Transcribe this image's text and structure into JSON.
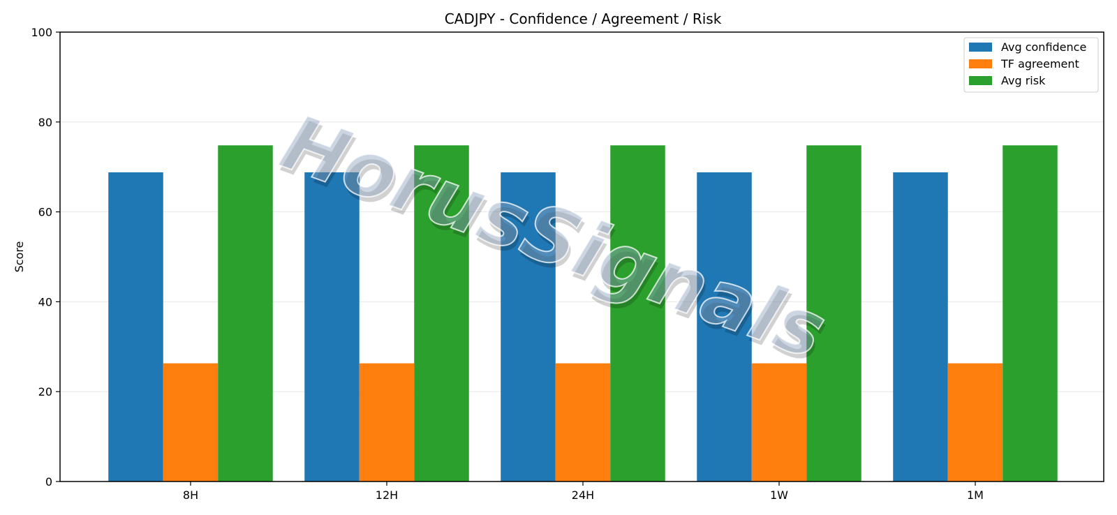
{
  "chart_data": {
    "type": "bar",
    "title": "CADJPY - Confidence / Agreement / Risk",
    "xlabel": "",
    "ylabel": "Score",
    "ylim": [
      0,
      100
    ],
    "yticks": [
      0,
      20,
      40,
      60,
      80,
      100
    ],
    "grid": "y",
    "legend_position": "top-right",
    "categories": [
      "8H",
      "12H",
      "24H",
      "1W",
      "1M"
    ],
    "series": [
      {
        "name": "Avg confidence",
        "color": "#1f77b4",
        "values": [
          68.8,
          68.8,
          68.8,
          68.8,
          68.8
        ]
      },
      {
        "name": "TF agreement",
        "color": "#ff7f0e",
        "values": [
          26.3,
          26.3,
          26.3,
          26.3,
          26.3
        ]
      },
      {
        "name": "Avg risk",
        "color": "#2ca02c",
        "values": [
          74.8,
          74.8,
          74.8,
          74.8,
          74.8
        ]
      }
    ],
    "watermark": "HorusSignals"
  }
}
